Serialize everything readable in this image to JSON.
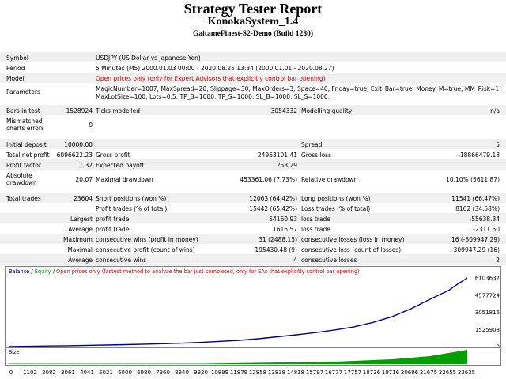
{
  "report": {
    "title": "Strategy Tester Report",
    "system": "KonokaSystem_1.4",
    "server": "GaitameFinest-S2-Demo (Build 1280)"
  },
  "info": {
    "symbol_label": "Symbol",
    "symbol_value": "USDJPY (US Dollar vs Japanese Yen)",
    "period_label": "Period",
    "period_value": "5 Minutes (M5) 2000.01.03 00:00 - 2020.08.25 13:34 (2000.01.01 - 2020.08.27)",
    "model_label": "Model",
    "model_value": "Open prices only (only for Expert Advisors that explicitly control bar opening)",
    "parameters_label": "Parameters",
    "parameters_line1": "MagicNumber=1007; MaxSpread=20; Slippage=30; MaxOrders=3; Space=40; Friday=true; Exit_Bar=true; Money_M=true; MM_Risk=1;",
    "parameters_line2": "MaxLotSize=100; Lots=0.5; TP_B=1000; TP_S=1000; SL_B=1000; SL_S=1000;"
  },
  "bars": {
    "bars_label": "Bars in test",
    "bars_value": "1528924",
    "ticks_label": "Ticks modelled",
    "ticks_value": "3054332",
    "quality_label": "Modelling quality",
    "quality_value": "n/a",
    "mismatched_label1": "Mismatched",
    "mismatched_label2": "charts errors",
    "mismatched_value": "0"
  },
  "stats": {
    "initial_deposit_label": "Initial deposit",
    "initial_deposit": "10000.00",
    "spread_label": "Spread",
    "spread": "5",
    "net_profit_label": "Total net profit",
    "net_profit": "6096622.23",
    "gross_profit_label": "Gross profit",
    "gross_profit": "24963101.41",
    "gross_loss_label": "Gross loss",
    "gross_loss": "-18866479.18",
    "profit_factor_label": "Profit factor",
    "profit_factor": "1.32",
    "expected_payoff_label": "Expected payoff",
    "expected_payoff": "258.29",
    "abs_dd_label1": "Absolute",
    "abs_dd_label2": "drawdown",
    "abs_dd": "20.07",
    "max_dd_label": "Maximal drawdown",
    "max_dd": "453361.06 (7.73%)",
    "rel_dd_label": "Relative drawdown",
    "rel_dd": "10.10% (5611.87)",
    "total_trades_label": "Total trades",
    "total_trades": "23604",
    "short_label": "Short positions (won %)",
    "short": "12063 (64.42%)",
    "long_label": "Long positions (won %)",
    "long": "11541 (66.47%)",
    "profit_trades_label": "Profit trades (% of total)",
    "profit_trades": "15442 (65.42%)",
    "loss_trades_label": "Loss trades (% of total)",
    "loss_trades": "8162 (34.58%)",
    "largest_label": "Largest",
    "largest_profit_label": "profit trade",
    "largest_profit": "54160.93",
    "largest_loss_label": "loss trade",
    "largest_loss": "-55638.34",
    "average_label": "Average",
    "average_profit_label": "profit trade",
    "average_profit": "1616.57",
    "average_loss_label": "loss trade",
    "average_loss": "-2311.50",
    "maximum_label": "Maximum",
    "max_cons_wins_label": "consecutive wins (profit in money)",
    "max_cons_wins": "31 (2488.15)",
    "max_cons_losses_label": "consecutive losses (loss in money)",
    "max_cons_losses": "16 (-309947.29)",
    "maximal_label": "Maximal",
    "maximal_cons_profit_label": "consecutive profit (count of wins)",
    "maximal_cons_profit": "195430.48 (9)",
    "maximal_cons_loss_label": "consecutive loss (count of losses)",
    "maximal_cons_loss": "-309947.29 (16)",
    "avg_cons_label": "Average",
    "avg_cons_wins_label": "consecutive wins",
    "avg_cons_wins": "4",
    "avg_cons_losses_label": "consecutive losses",
    "avg_cons_losses": "2"
  },
  "chart_legend": {
    "balance": "Balance",
    "sep1": " / ",
    "equity": "Equity",
    "sep2": " / ",
    "note": "Open prices only (fastest method to analyze the bar just completed, only for EAs that explicitly control bar opening)",
    "size_label": "Size"
  },
  "colors": {
    "balance": "#00008b",
    "equity": "#00a000",
    "note": "#e00000",
    "size_bars": "#00a000",
    "alt_row": "#f0f0f0"
  },
  "chart_data": {
    "type": "line",
    "title": "",
    "xlabel": "",
    "ylabel": "",
    "x_ticks": [
      "0",
      "1102",
      "2082",
      "3061",
      "4041",
      "5021",
      "6000",
      "6980",
      "7960",
      "8940",
      "9920",
      "10899",
      "11879",
      "12858",
      "13838",
      "14818",
      "15797",
      "16777",
      "17757",
      "18736",
      "19716",
      "20696",
      "21675",
      "22655",
      "23635"
    ],
    "y_ticks": [
      "6103632",
      "4577724",
      "3051816",
      "1525908",
      "0"
    ],
    "xlim": [
      0,
      23604
    ],
    "ylim": [
      0,
      6103632
    ],
    "series": [
      {
        "name": "Balance",
        "x": [
          0,
          1102,
          2082,
          3061,
          4041,
          5021,
          6000,
          6980,
          7960,
          8940,
          9920,
          10899,
          11879,
          12858,
          13838,
          14818,
          15797,
          16777,
          17757,
          18736,
          19716,
          20696,
          21675,
          22655,
          23100,
          23604
        ],
        "values": [
          10000,
          30000,
          55000,
          80000,
          110000,
          140000,
          175000,
          215000,
          260000,
          310000,
          380000,
          470000,
          560000,
          700000,
          880000,
          1050000,
          1250000,
          1480000,
          1750000,
          2150000,
          2650000,
          3350000,
          4200000,
          5000000,
          5550000,
          6096622
        ]
      }
    ],
    "size_series": {
      "name": "Size",
      "x": [
        0,
        9920,
        16777,
        19716,
        21675,
        23604
      ],
      "values": [
        0.5,
        0.5,
        3,
        6,
        10,
        18
      ]
    }
  }
}
